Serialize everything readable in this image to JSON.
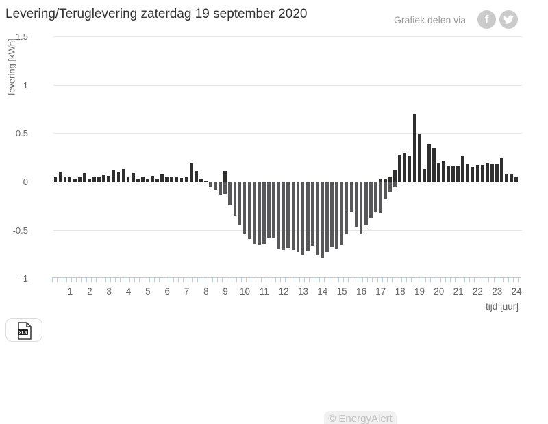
{
  "header": {
    "title": "Levering/Teruglevering zaterdag 19 september 2020",
    "share_label": "Grafiek delen via",
    "facebook_glyph": "f"
  },
  "toolbar": {
    "xls_label": "XLS"
  },
  "footer": {
    "copyright": "© EnergyAlert"
  },
  "chart_data": {
    "type": "bar",
    "title": "Levering/Teruglevering zaterdag 19 september 2020",
    "ylabel": "levering [kWh]",
    "xlabel": "tijd [uur]",
    "unit": "kWh",
    "ylim": [
      -1,
      1.5
    ],
    "y_ticks": [
      1.5,
      1,
      0.5,
      0,
      -0.5,
      -1
    ],
    "y_gridline_ticks": [
      1.5,
      1,
      0.5,
      -0.5
    ],
    "x_tick_labels": [
      "1",
      "2",
      "3",
      "4",
      "5",
      "6",
      "7",
      "8",
      "9",
      "10",
      "11",
      "12",
      "13",
      "14",
      "15",
      "16",
      "17",
      "18",
      "19",
      "20",
      "21",
      "22",
      "23",
      "24"
    ],
    "x_range_hours": [
      0,
      24
    ],
    "x_step_minutes": 15,
    "bars_per_hour": 4,
    "legend": "none",
    "grid": "horizontal",
    "series": [
      {
        "name": "Levering",
        "color": "#2f2f2f",
        "values": [
          0.04,
          0.1,
          0.05,
          0.04,
          0.03,
          0.05,
          0.09,
          0.03,
          0.04,
          0.05,
          0.07,
          0.06,
          0.12,
          0.1,
          0.13,
          0.05,
          0.09,
          0.03,
          0.04,
          0.03,
          0.06,
          0.03,
          0.08,
          0.04,
          0.05,
          0.05,
          0.035,
          0.04,
          0.19,
          0.11,
          0.03,
          0.01,
          0,
          0,
          0,
          0.11,
          0,
          0,
          0,
          0,
          0,
          0,
          0,
          0,
          0,
          0,
          0,
          0,
          0,
          0,
          0,
          0,
          0,
          0,
          0,
          0,
          0,
          0,
          0,
          0,
          0,
          0,
          0,
          0,
          0,
          0,
          0,
          0.02,
          0.03,
          0.05,
          0.12,
          0.27,
          0.3,
          0.26,
          0.7,
          0.49,
          0.13,
          0.39,
          0.345,
          0.19,
          0.21,
          0.16,
          0.16,
          0.16,
          0.26,
          0.18,
          0.15,
          0.17,
          0.17,
          0.19,
          0.175,
          0.175,
          0.245,
          0.075,
          0.075,
          0.05
        ]
      },
      {
        "name": "Teruglevering",
        "color": "#58585a",
        "values": [
          0,
          0,
          0,
          0,
          0,
          0,
          0,
          0,
          0,
          0,
          0,
          0,
          0,
          0,
          0,
          0,
          0,
          0,
          0,
          0,
          0,
          0,
          0,
          0,
          0,
          0,
          0,
          0,
          0,
          0,
          0,
          0,
          -0.05,
          -0.08,
          -0.13,
          -0.12,
          -0.24,
          -0.35,
          -0.44,
          -0.53,
          -0.59,
          -0.64,
          -0.65,
          -0.64,
          -0.57,
          -0.58,
          -0.69,
          -0.7,
          -0.68,
          -0.7,
          -0.72,
          -0.75,
          -0.71,
          -0.66,
          -0.76,
          -0.78,
          -0.72,
          -0.67,
          -0.695,
          -0.645,
          -0.54,
          -0.31,
          -0.46,
          -0.54,
          -0.445,
          -0.37,
          -0.31,
          -0.32,
          -0.18,
          -0.1,
          -0.05,
          0,
          0,
          0,
          0,
          0,
          0,
          0,
          0,
          0,
          0,
          0,
          0,
          0,
          0,
          0,
          0,
          0,
          0,
          0,
          0,
          0,
          0,
          0,
          0,
          0
        ]
      }
    ]
  }
}
